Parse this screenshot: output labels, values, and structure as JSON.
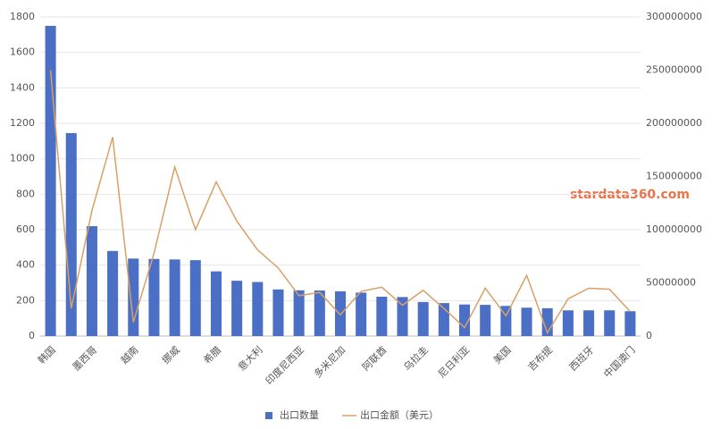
{
  "chart_data": {
    "type": "bar-line",
    "watermark": "stardata360.com",
    "categories": [
      "韩国",
      null,
      "墨西哥",
      null,
      "越南",
      null,
      "挪威",
      null,
      "希腊",
      null,
      "意大利",
      null,
      "印度尼西亚",
      null,
      "多米尼加",
      null,
      "阿联酋",
      null,
      "乌拉圭",
      null,
      "尼日利亚",
      null,
      "美国",
      null,
      "吉布提",
      null,
      "西班牙",
      null,
      "中国澳门"
    ],
    "series": [
      {
        "name": "出口数量",
        "type": "bar",
        "color": "#4a6fc4",
        "values": [
          1750,
          1145,
          620,
          480,
          437,
          435,
          432,
          428,
          365,
          312,
          305,
          263,
          258,
          257,
          252,
          245,
          222,
          220,
          192,
          186,
          178,
          176,
          170,
          160,
          157,
          145,
          145,
          145,
          140
        ]
      },
      {
        "name": "出口金额（美元）",
        "type": "line",
        "axis": "y2",
        "color": "#d9a066",
        "values": [
          250000000,
          26000000,
          118000000,
          187000000,
          13000000,
          78000000,
          159000000,
          100000000,
          145000000,
          108000000,
          81000000,
          64000000,
          38000000,
          41000000,
          20000000,
          42000000,
          46000000,
          29000000,
          43000000,
          26000000,
          8000000,
          45000000,
          19000000,
          57000000,
          3000000,
          35000000,
          45000000,
          44000000,
          23000000
        ]
      }
    ],
    "ylim": [
      0,
      1800
    ],
    "yticks": [
      0,
      200,
      400,
      600,
      800,
      1000,
      1200,
      1400,
      1600,
      1800
    ],
    "y2lim": [
      0,
      300000000
    ],
    "y2ticks": [
      0,
      50000000,
      100000000,
      150000000,
      200000000,
      250000000,
      300000000
    ],
    "grid": true,
    "legend": "bottom"
  }
}
